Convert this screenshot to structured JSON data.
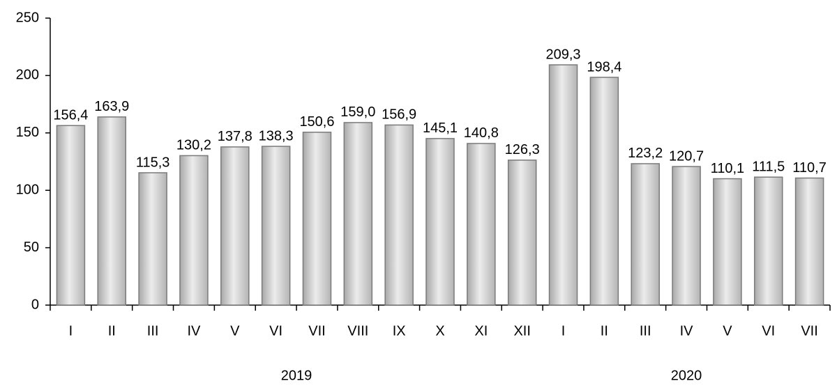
{
  "chart_data": {
    "type": "bar",
    "categories": [
      "I",
      "II",
      "III",
      "IV",
      "V",
      "VI",
      "VII",
      "VIII",
      "IX",
      "X",
      "XI",
      "XII",
      "I",
      "II",
      "III",
      "IV",
      "V",
      "VI",
      "VII"
    ],
    "values": [
      156.4,
      163.9,
      115.3,
      130.2,
      137.8,
      138.3,
      150.6,
      159.0,
      156.9,
      145.1,
      140.8,
      126.3,
      209.3,
      198.4,
      123.2,
      120.7,
      110.1,
      111.5,
      110.7
    ],
    "value_labels": [
      "156,4",
      "163,9",
      "115,3",
      "130,2",
      "137,8",
      "138,3",
      "150,6",
      "159,0",
      "156,9",
      "145,1",
      "140,8",
      "126,3",
      "209,3",
      "198,4",
      "123,2",
      "120,7",
      "110,1",
      "111,5",
      "110,7"
    ],
    "groups": [
      {
        "name": "2019",
        "count": 12
      },
      {
        "name": "2020",
        "count": 7
      }
    ],
    "color": "#c8c8c8",
    "ylim": [
      0,
      250
    ],
    "yticks": [
      0,
      50,
      100,
      150,
      200,
      250
    ],
    "grid": false
  }
}
